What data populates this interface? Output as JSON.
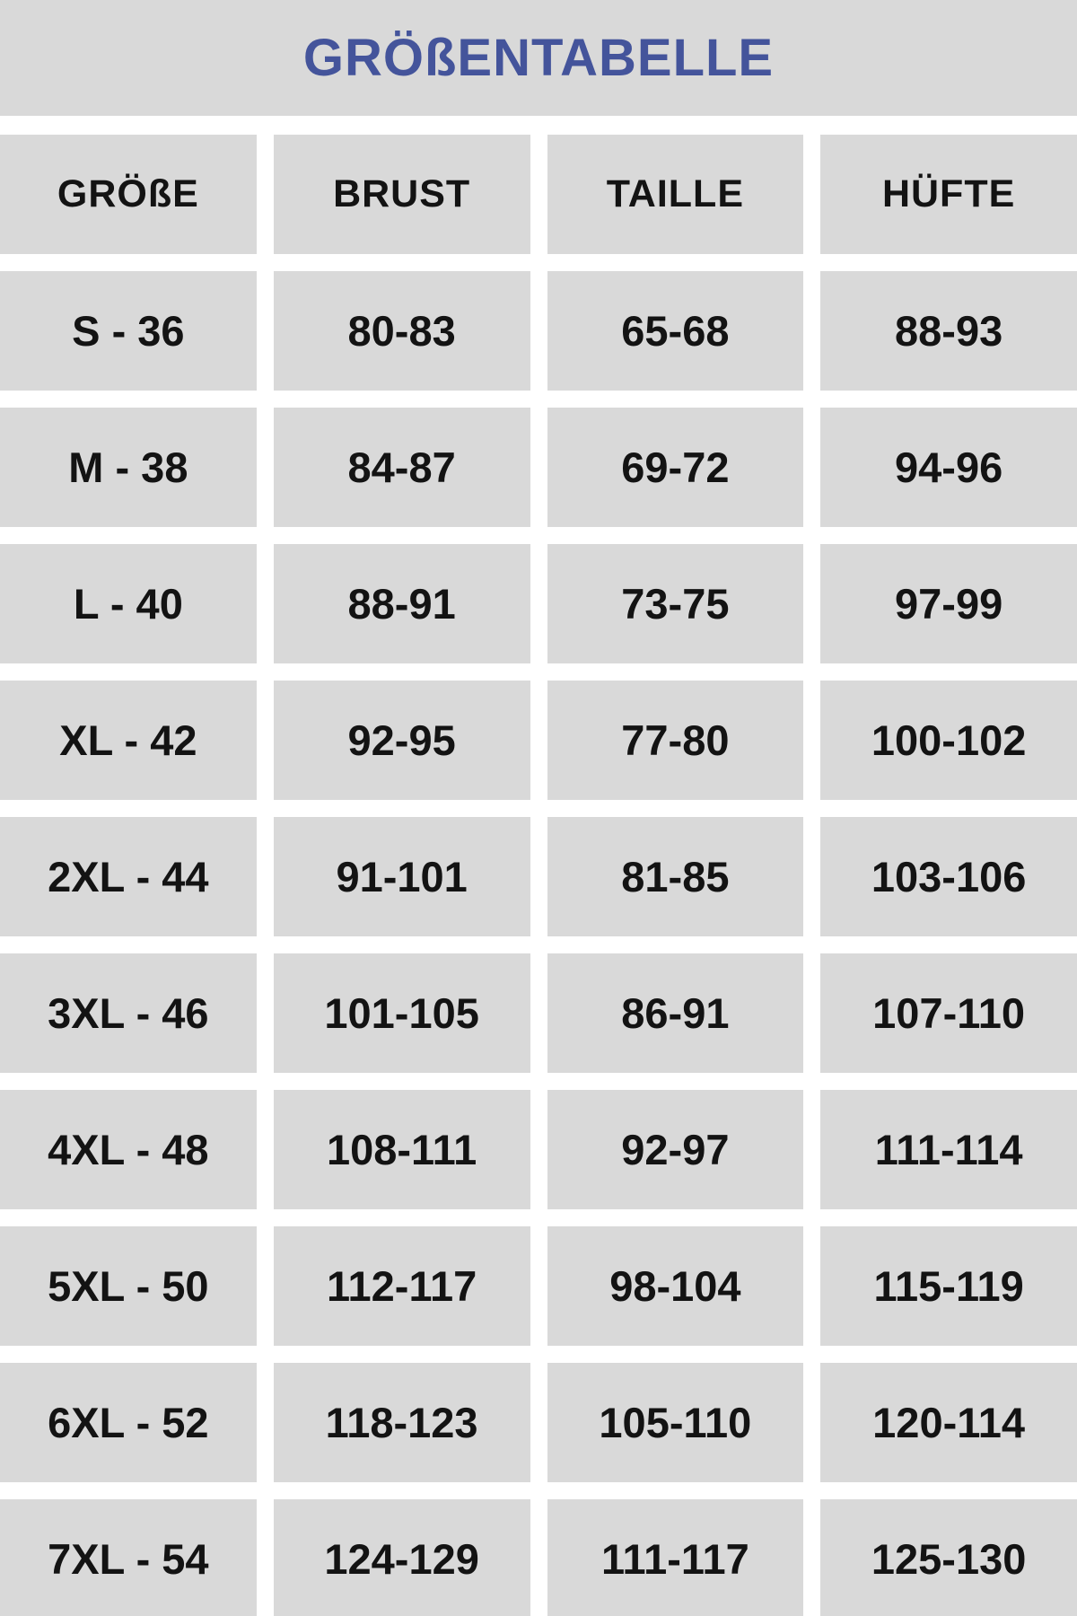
{
  "title": "GRÖßENTABELLE",
  "chart_data": {
    "type": "table",
    "title": "GRÖßENTABELLE",
    "columns": [
      "GRÖßE",
      "BRUST",
      "TAILLE",
      "HÜFTE"
    ],
    "rows": [
      [
        "S - 36",
        "80-83",
        "65-68",
        "88-93"
      ],
      [
        "M - 38",
        "84-87",
        "69-72",
        "94-96"
      ],
      [
        "L - 40",
        "88-91",
        "73-75",
        "97-99"
      ],
      [
        "XL - 42",
        "92-95",
        "77-80",
        "100-102"
      ],
      [
        "2XL - 44",
        "91-101",
        "81-85",
        "103-106"
      ],
      [
        "3XL - 46",
        "101-105",
        "86-91",
        "107-110"
      ],
      [
        "4XL - 48",
        "108-111",
        "92-97",
        "111-114"
      ],
      [
        "5XL - 50",
        "112-117",
        "98-104",
        "115-119"
      ],
      [
        "6XL - 52",
        "118-123",
        "105-110",
        "120-114"
      ],
      [
        "7XL - 54",
        "124-129",
        "111-117",
        "125-130"
      ]
    ]
  },
  "colors": {
    "cell_bg": "#d9d9d9",
    "title": "#44549b",
    "text": "#131313",
    "page_bg": "#ffffff"
  }
}
